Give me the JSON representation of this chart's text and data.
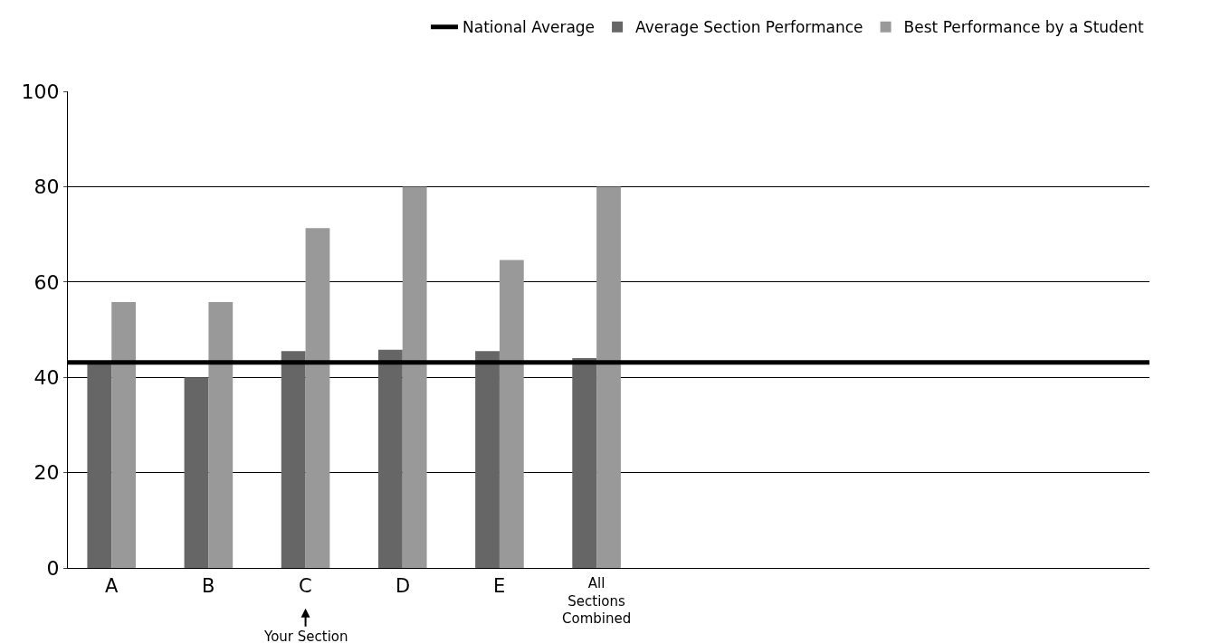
{
  "chart_data": {
    "type": "bar",
    "categories": [
      "A",
      "B",
      "C",
      "D",
      "E",
      "All Sections Combined"
    ],
    "series": [
      {
        "name": "Average Section Performance",
        "color": "#666666",
        "values": [
          43,
          40,
          45.5,
          45.8,
          45.5,
          44
        ]
      },
      {
        "name": "Best Performance by a Student",
        "color": "#999999",
        "values": [
          55.8,
          55.8,
          71.3,
          80,
          64.6,
          80
        ]
      }
    ],
    "ref_lines": [
      {
        "axis": "y",
        "value": 43.1,
        "label": "National Average",
        "color": "#000000",
        "line_style": "solid"
      }
    ],
    "annotations": [
      "Your Section"
    ],
    "ylim": [
      0,
      100
    ],
    "yticks": [
      0,
      20,
      40,
      60,
      80,
      100
    ],
    "grid": "y",
    "legend": "top right"
  }
}
